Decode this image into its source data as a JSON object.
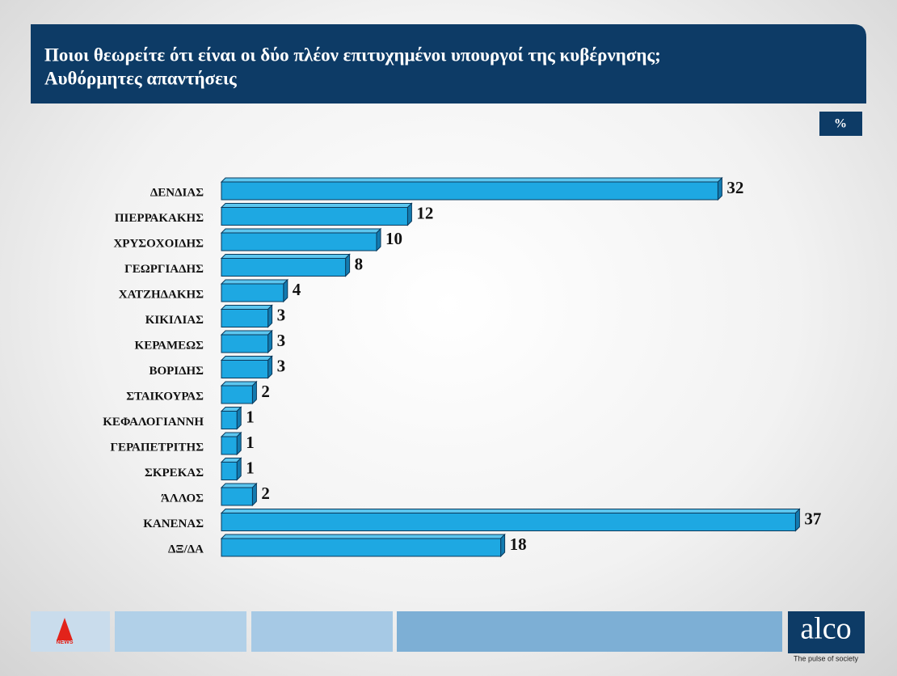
{
  "chart_data": {
    "type": "bar",
    "title": "Ποιοι θεωρείτε ότι είναι οι δύο πλέον επιτυχημένοι υπουργοί της κυβέρνησης;",
    "subtitle": "Αυθόρμητες απαντήσεις",
    "unit": "%",
    "categories": [
      "ΔΕΝΔΙΑΣ",
      "ΠΙΕΡΡΑΚΑΚΗΣ",
      "ΧΡΥΣΟΧΟΙΔΗΣ",
      "ΓΕΩΡΓΙΑΔΗΣ",
      "ΧΑΤΖΗΔΑΚΗΣ",
      "ΚΙΚΙΛΙΑΣ",
      "ΚΕΡΑΜΕΩΣ",
      "ΒΟΡΙΔΗΣ",
      "ΣΤΑΙΚΟΥΡΑΣ",
      "ΚΕΦΑΛΟΓΙΑΝΝΗ",
      "ΓΕΡΑΠΕΤΡΙΤΗΣ",
      "ΣΚΡΕΚΑΣ",
      "ΆΛΛΟΣ",
      "ΚΑΝΕΝΑΣ",
      "ΔΞ/ΔΑ"
    ],
    "values": [
      32,
      12,
      10,
      8,
      4,
      3,
      3,
      3,
      2,
      1,
      1,
      1,
      2,
      37,
      18
    ],
    "color": "#1ea8e2",
    "xlim": [
      0,
      40
    ]
  },
  "branding": {
    "news": "NEWS",
    "brand": "alco",
    "tagline": "The pulse of society"
  }
}
